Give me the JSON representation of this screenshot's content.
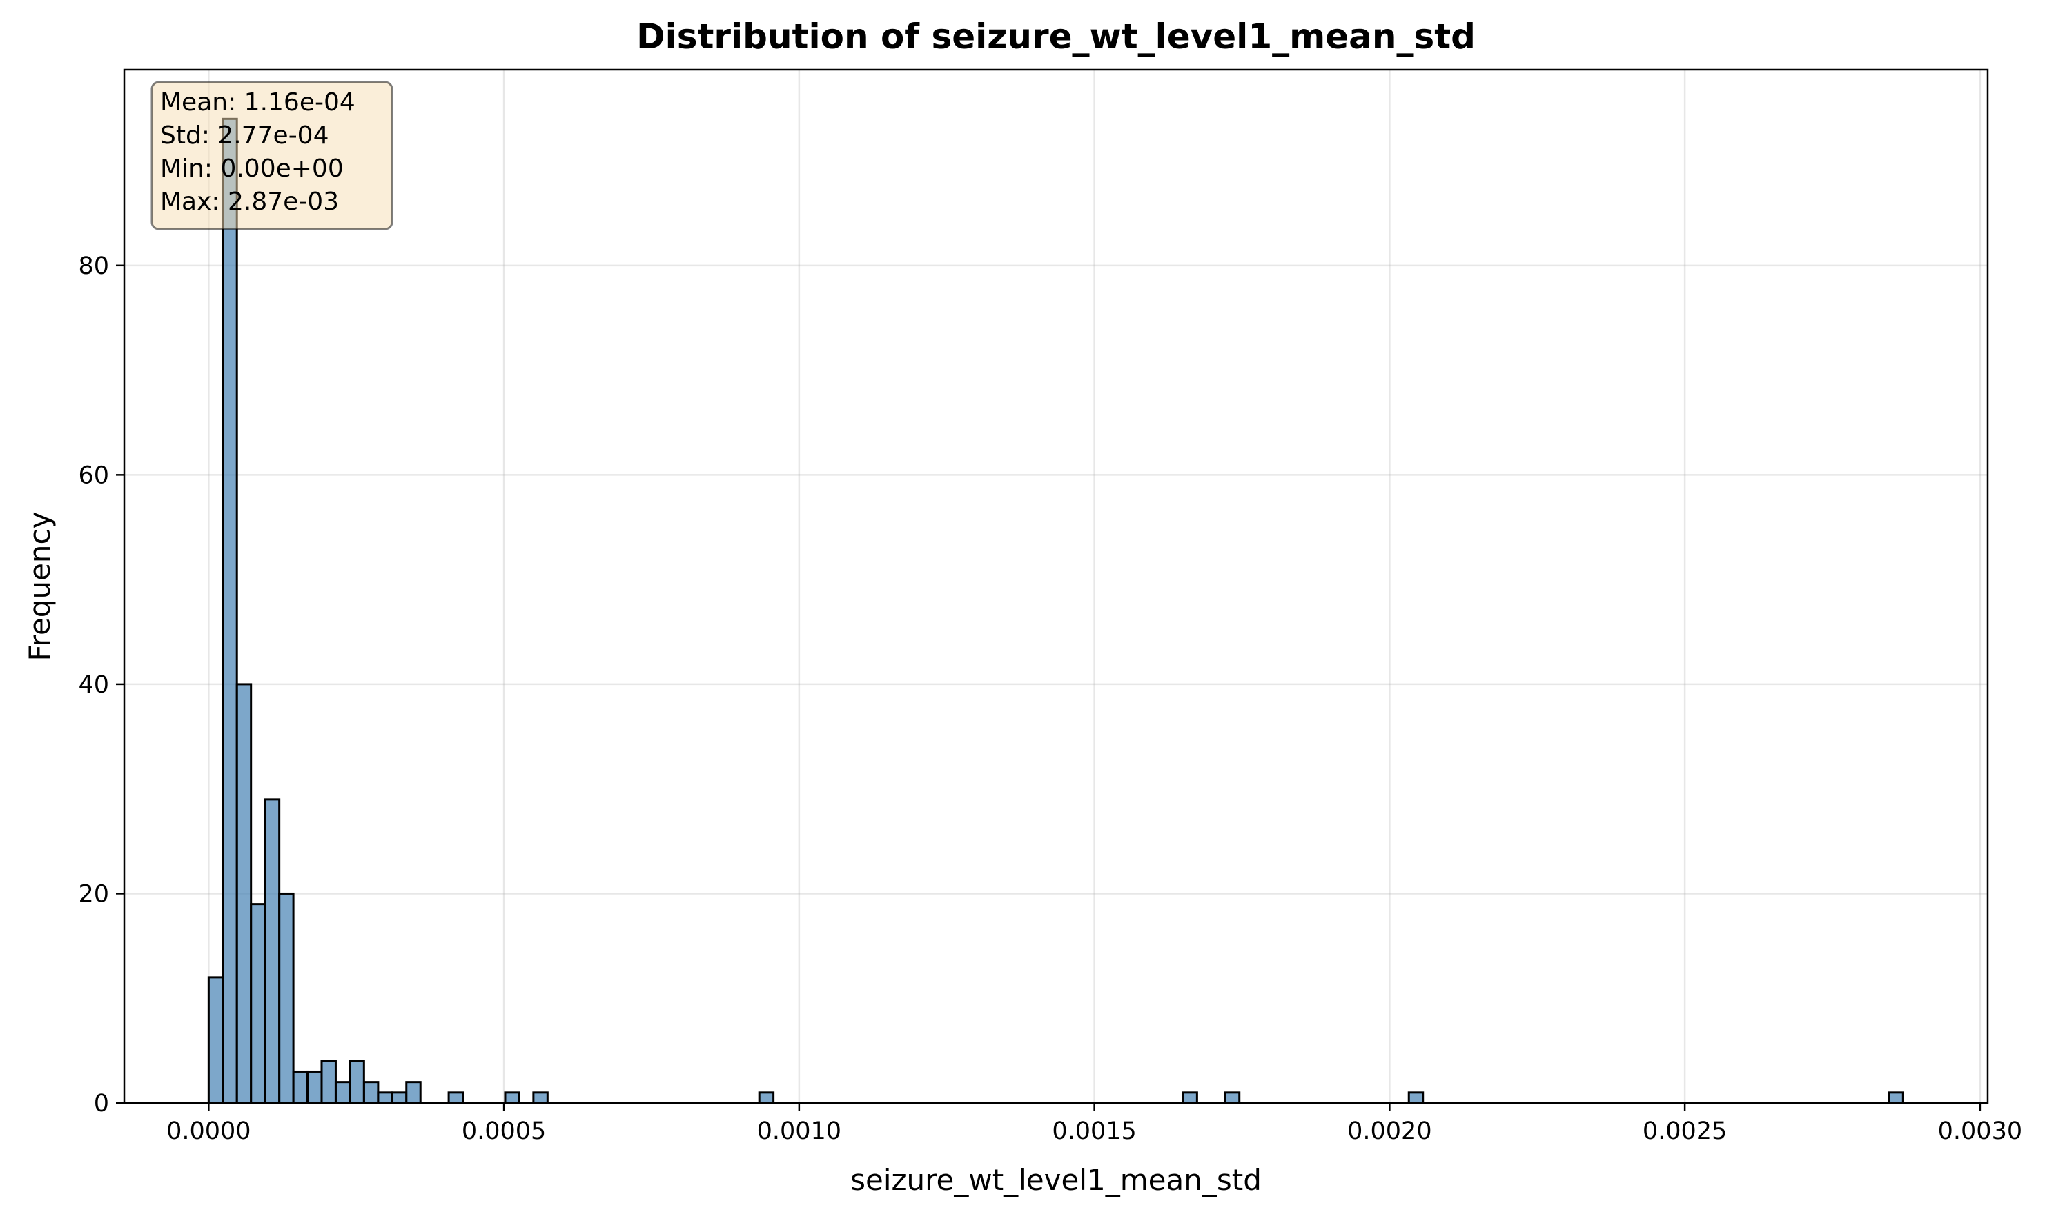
{
  "chart_data": {
    "type": "bar",
    "title": "Distribution of seizure_wt_level1_mean_std",
    "xlabel": "seizure_wt_level1_mean_std",
    "ylabel": "Frequency",
    "xlim": [
      -0.000143,
      0.003013
    ],
    "ylim": [
      0,
      98.7
    ],
    "grid": true,
    "xticks": [
      0.0,
      0.0005,
      0.001,
      0.0015,
      0.002,
      0.0025,
      0.003
    ],
    "xtick_labels": [
      "0.0000",
      "0.0005",
      "0.0010",
      "0.0015",
      "0.0020",
      "0.0025",
      "0.0030"
    ],
    "yticks": [
      0,
      20,
      40,
      60,
      80
    ],
    "ytick_labels": [
      "0",
      "20",
      "40",
      "60",
      "80"
    ],
    "bin_width": 2.39e-05,
    "bin_starts": [
      0.0,
      2.39e-05,
      4.78e-05,
      7.17e-05,
      9.57e-05,
      0.0001196,
      0.0001435,
      0.0001674,
      0.0001913,
      0.0002152,
      0.0002391,
      0.0002631,
      0.000287,
      0.0003109,
      0.0003348,
      0.0004065,
      0.0005022,
      0.00055,
      0.0009326,
      0.00165,
      0.0017217,
      0.0020326,
      0.0028457
    ],
    "values": [
      12,
      94,
      40,
      19,
      29,
      20,
      3,
      3,
      4,
      2,
      4,
      2,
      1,
      1,
      2,
      1,
      1,
      1,
      1,
      1,
      1,
      1,
      1
    ],
    "bar_color": "#4682b4",
    "edge_color": "#000000",
    "stats_box": {
      "lines": [
        "Mean: 1.16e-04",
        "Std: 2.77e-04",
        "Min: 0.00e+00",
        "Max: 2.87e-03"
      ],
      "background": "#f5deb3",
      "placement": "top-left"
    }
  }
}
